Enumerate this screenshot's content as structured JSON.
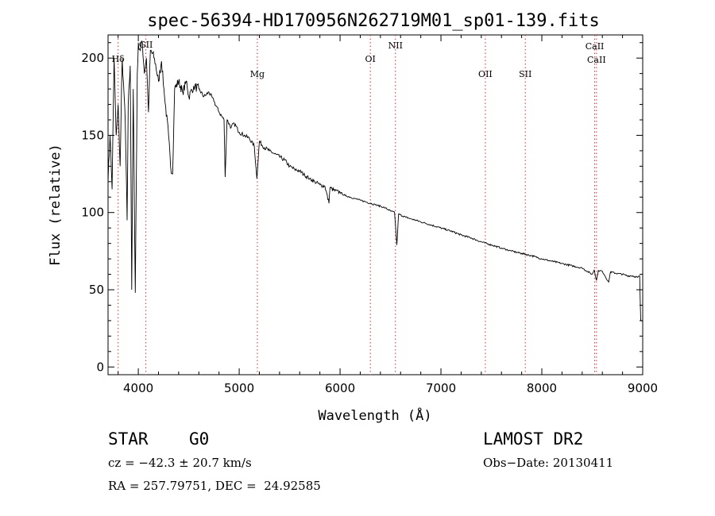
{
  "chart_data": {
    "type": "line",
    "title": "spec-56394-HD170956N262719M01_sp01-139.fits",
    "xlabel": "Wavelength (Å)",
    "ylabel": "Flux (relative)",
    "xlim": [
      3700,
      9000
    ],
    "ylim": [
      -5,
      215
    ],
    "x_ticks": [
      4000,
      5000,
      6000,
      7000,
      8000,
      9000
    ],
    "y_ticks": [
      0,
      50,
      100,
      150,
      200
    ],
    "grid": false,
    "series": [
      {
        "points": [
          [
            3700,
            120
          ],
          [
            3720,
            150
          ],
          [
            3740,
            115
          ],
          [
            3760,
            200
          ],
          [
            3780,
            150
          ],
          [
            3800,
            170
          ],
          [
            3820,
            130
          ],
          [
            3840,
            200
          ],
          [
            3860,
            175
          ],
          [
            3870,
            160
          ],
          [
            3889,
            95
          ],
          [
            3900,
            170
          ],
          [
            3920,
            195
          ],
          [
            3935,
            50
          ],
          [
            3950,
            180
          ],
          [
            3970,
            48
          ],
          [
            3990,
            190
          ],
          [
            4000,
            210
          ],
          [
            4020,
            205
          ],
          [
            4040,
            210
          ],
          [
            4060,
            190
          ],
          [
            4080,
            200
          ],
          [
            4101,
            165
          ],
          [
            4120,
            205
          ],
          [
            4160,
            200
          ],
          [
            4200,
            185
          ],
          [
            4230,
            198
          ],
          [
            4260,
            175
          ],
          [
            4300,
            150
          ],
          [
            4320,
            130
          ],
          [
            4340,
            125
          ],
          [
            4360,
            180
          ],
          [
            4400,
            185
          ],
          [
            4440,
            178
          ],
          [
            4480,
            185
          ],
          [
            4500,
            175
          ],
          [
            4550,
            182
          ],
          [
            4600,
            180
          ],
          [
            4650,
            175
          ],
          [
            4700,
            178
          ],
          [
            4750,
            172
          ],
          [
            4800,
            165
          ],
          [
            4850,
            160
          ],
          [
            4861,
            123
          ],
          [
            4880,
            160
          ],
          [
            4920,
            155
          ],
          [
            4950,
            158
          ],
          [
            5000,
            152
          ],
          [
            5050,
            150
          ],
          [
            5100,
            148
          ],
          [
            5150,
            143
          ],
          [
            5175,
            122
          ],
          [
            5200,
            146
          ],
          [
            5250,
            142
          ],
          [
            5300,
            140
          ],
          [
            5350,
            138
          ],
          [
            5400,
            136
          ],
          [
            5450,
            134
          ],
          [
            5500,
            130
          ],
          [
            5550,
            128
          ],
          [
            5600,
            127
          ],
          [
            5650,
            124
          ],
          [
            5700,
            122
          ],
          [
            5750,
            120
          ],
          [
            5800,
            118
          ],
          [
            5850,
            117
          ],
          [
            5890,
            106
          ],
          [
            5900,
            116
          ],
          [
            5950,
            114
          ],
          [
            6000,
            113
          ],
          [
            6050,
            111
          ],
          [
            6100,
            110
          ],
          [
            6150,
            109
          ],
          [
            6200,
            108
          ],
          [
            6250,
            107
          ],
          [
            6300,
            106
          ],
          [
            6350,
            105
          ],
          [
            6400,
            104
          ],
          [
            6450,
            103
          ],
          [
            6500,
            101
          ],
          [
            6540,
            100
          ],
          [
            6563,
            79
          ],
          [
            6580,
            99
          ],
          [
            6650,
            97
          ],
          [
            6700,
            96
          ],
          [
            6800,
            94
          ],
          [
            6900,
            92
          ],
          [
            7000,
            90
          ],
          [
            7100,
            88
          ],
          [
            7200,
            85.5
          ],
          [
            7300,
            83.5
          ],
          [
            7400,
            81
          ],
          [
            7500,
            79
          ],
          [
            7600,
            77
          ],
          [
            7700,
            75
          ],
          [
            7800,
            73.5
          ],
          [
            7900,
            72
          ],
          [
            8000,
            70
          ],
          [
            8100,
            68.5
          ],
          [
            8200,
            67
          ],
          [
            8300,
            65.5
          ],
          [
            8400,
            64
          ],
          [
            8498,
            60
          ],
          [
            8520,
            63
          ],
          [
            8542,
            56
          ],
          [
            8560,
            62.5
          ],
          [
            8600,
            62
          ],
          [
            8662,
            55
          ],
          [
            8680,
            61.5
          ],
          [
            8750,
            60.5
          ],
          [
            8800,
            60
          ],
          [
            8850,
            59
          ],
          [
            8900,
            59
          ],
          [
            8950,
            58
          ],
          [
            8970,
            59
          ],
          [
            8980,
            30
          ],
          [
            9000,
            30
          ]
        ]
      }
    ],
    "annotations": [
      {
        "label": "Hδ",
        "x": 3800
      },
      {
        "label": "GII",
        "x": 4075
      },
      {
        "label": "Mg",
        "x": 5180
      },
      {
        "label": "OI",
        "x": 6300
      },
      {
        "label": "NII",
        "x": 6549
      },
      {
        "label": "OII",
        "x": 7440
      },
      {
        "label": "SII",
        "x": 7836
      },
      {
        "label": "CaII",
        "x": 8524
      },
      {
        "label": "CaII",
        "x": 8542
      }
    ]
  },
  "info": {
    "object_class": "STAR",
    "subclass": "G0",
    "survey": "LAMOST DR2",
    "cz": "cz = −42.3 ± 20.7 km/s",
    "obs_date": "Obs−Date: 20130411",
    "coords": "RA = 257.79751, DEC =  24.92585"
  }
}
